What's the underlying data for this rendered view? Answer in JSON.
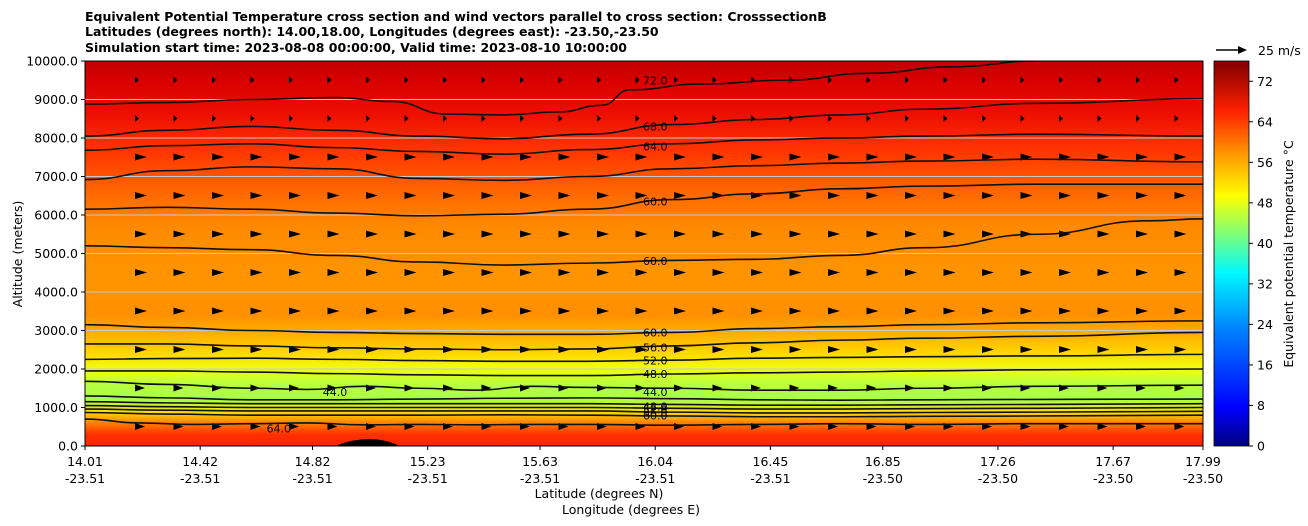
{
  "chart_data": {
    "type": "contour-cross-section",
    "title_lines": [
      "Equivalent Potential Temperature cross section and wind vectors parallel to cross section: CrosssectionB",
      "Latitudes (degrees north): 14.00,18.00, Longitudes (degrees east): -23.50,-23.50",
      "Simulation start time: 2023-08-08 00:00:00, Valid time: 2023-08-10 10:00:00"
    ],
    "ylabel": "Altitude (meters)",
    "xlabel_lat": "Latitude (degrees N)",
    "xlabel_lon": "Longitude (degrees E)",
    "ylim": [
      0,
      10000
    ],
    "yticks": [
      "0.0",
      "1000.0",
      "2000.0",
      "3000.0",
      "4000.0",
      "5000.0",
      "6000.0",
      "7000.0",
      "8000.0",
      "9000.0",
      "10000.0"
    ],
    "xlim": [
      14.01,
      17.99
    ],
    "xticks": [
      {
        "lat": "14.01",
        "lon": "-23.51",
        "pos": 14.01
      },
      {
        "lat": "14.42",
        "lon": "-23.51",
        "pos": 14.42
      },
      {
        "lat": "14.82",
        "lon": "-23.51",
        "pos": 14.82
      },
      {
        "lat": "15.23",
        "lon": "-23.51",
        "pos": 15.23
      },
      {
        "lat": "15.63",
        "lon": "-23.51",
        "pos": 15.63
      },
      {
        "lat": "16.04",
        "lon": "-23.51",
        "pos": 16.04
      },
      {
        "lat": "16.45",
        "lon": "-23.51",
        "pos": 16.45
      },
      {
        "lat": "16.85",
        "lon": "-23.50",
        "pos": 16.85
      },
      {
        "lat": "17.26",
        "lon": "-23.50",
        "pos": 17.26
      },
      {
        "lat": "17.67",
        "lon": "-23.50",
        "pos": 17.67
      },
      {
        "lat": "17.99",
        "lon": "-23.50",
        "pos": 17.99
      }
    ],
    "grid": true,
    "colorbar": {
      "label": "Equivalent potential temperature °C",
      "range": [
        0,
        76
      ],
      "ticks": [
        "0",
        "8",
        "16",
        "24",
        "32",
        "40",
        "48",
        "56",
        "64",
        "72"
      ],
      "tick_values": [
        0,
        8,
        16,
        24,
        32,
        40,
        48,
        56,
        64,
        72
      ]
    },
    "quiver_key": {
      "label": "25 m/s"
    },
    "contour_levels": [
      {
        "value": 72,
        "label": "72.0",
        "points": [
          [
            14.01,
            8880
          ],
          [
            14.3,
            8920
          ],
          [
            14.6,
            9000
          ],
          [
            14.9,
            9050
          ],
          [
            15.1,
            8950
          ],
          [
            15.3,
            8620
          ],
          [
            15.5,
            8600
          ],
          [
            15.7,
            8680
          ],
          [
            15.85,
            8850
          ],
          [
            15.95,
            9250
          ],
          [
            16.2,
            9400
          ],
          [
            16.5,
            9500
          ],
          [
            16.8,
            9680
          ],
          [
            17.1,
            9850
          ],
          [
            17.4,
            10000
          ]
        ],
        "label_at": [
          16.04,
          9500
        ]
      },
      {
        "value": 68,
        "label": "68.0",
        "points": [
          [
            14.01,
            8050
          ],
          [
            14.3,
            8200
          ],
          [
            14.6,
            8300
          ],
          [
            14.9,
            8200
          ],
          [
            15.2,
            8050
          ],
          [
            15.5,
            7980
          ],
          [
            15.8,
            8100
          ],
          [
            16.1,
            8350
          ],
          [
            16.4,
            8480
          ],
          [
            16.7,
            8600
          ],
          [
            17.0,
            8750
          ],
          [
            17.4,
            8900
          ],
          [
            17.99,
            9020
          ]
        ],
        "label_at": [
          16.04,
          8300
        ]
      },
      {
        "value": 64,
        "label": "64.0",
        "points": [
          [
            14.01,
            7680
          ],
          [
            14.3,
            7800
          ],
          [
            14.6,
            7850
          ],
          [
            14.9,
            7750
          ],
          [
            15.2,
            7650
          ],
          [
            15.5,
            7580
          ],
          [
            15.8,
            7700
          ],
          [
            16.1,
            7850
          ],
          [
            16.4,
            7950
          ],
          [
            16.7,
            8000
          ],
          [
            17.0,
            8050
          ],
          [
            17.4,
            8100
          ],
          [
            17.99,
            8050
          ]
        ],
        "label_at": [
          16.04,
          7780
        ]
      },
      {
        "value": 62,
        "label": "",
        "points": [
          [
            14.01,
            6920
          ],
          [
            14.3,
            7150
          ],
          [
            14.6,
            7250
          ],
          [
            14.9,
            7200
          ],
          [
            15.2,
            6950
          ],
          [
            15.5,
            6900
          ],
          [
            15.8,
            7000
          ],
          [
            16.1,
            7200
          ],
          [
            16.4,
            7280
          ],
          [
            16.7,
            7350
          ],
          [
            17.0,
            7400
          ],
          [
            17.4,
            7450
          ],
          [
            17.99,
            7380
          ]
        ],
        "label_at": null
      },
      {
        "value": 60,
        "label": "60.0",
        "points": [
          [
            14.01,
            6150
          ],
          [
            14.3,
            6200
          ],
          [
            14.6,
            6150
          ],
          [
            14.9,
            6050
          ],
          [
            15.2,
            5980
          ],
          [
            15.5,
            6020
          ],
          [
            15.8,
            6150
          ],
          [
            16.1,
            6400
          ],
          [
            16.4,
            6550
          ],
          [
            16.7,
            6680
          ],
          [
            17.0,
            6750
          ],
          [
            17.4,
            6800
          ],
          [
            17.99,
            6800
          ]
        ],
        "label_at": [
          16.04,
          6350
        ]
      },
      {
        "value": 60,
        "label": "60.0",
        "points": [
          [
            14.01,
            5200
          ],
          [
            14.3,
            5150
          ],
          [
            14.6,
            5100
          ],
          [
            14.9,
            4950
          ],
          [
            15.2,
            4780
          ],
          [
            15.5,
            4700
          ],
          [
            15.8,
            4750
          ],
          [
            16.1,
            4820
          ],
          [
            16.4,
            4850
          ],
          [
            16.7,
            4950
          ],
          [
            17.0,
            5150
          ],
          [
            17.4,
            5500
          ],
          [
            17.8,
            5850
          ],
          [
            17.99,
            5900
          ]
        ],
        "label_at": [
          16.04,
          4800
        ]
      },
      {
        "value": 60,
        "label": "60.0",
        "points": [
          [
            14.01,
            3150
          ],
          [
            14.3,
            3080
          ],
          [
            14.6,
            3000
          ],
          [
            14.9,
            2950
          ],
          [
            15.2,
            2920
          ],
          [
            15.5,
            2900
          ],
          [
            15.8,
            2900
          ],
          [
            16.1,
            2950
          ],
          [
            16.4,
            3050
          ],
          [
            16.7,
            3100
          ],
          [
            17.0,
            3150
          ],
          [
            17.4,
            3200
          ],
          [
            17.99,
            3250
          ]
        ],
        "label_at": [
          16.04,
          2950
        ]
      },
      {
        "value": 56,
        "label": "56.0",
        "points": [
          [
            14.01,
            2650
          ],
          [
            14.3,
            2650
          ],
          [
            14.6,
            2600
          ],
          [
            14.9,
            2550
          ],
          [
            15.2,
            2520
          ],
          [
            15.5,
            2500
          ],
          [
            15.8,
            2520
          ],
          [
            16.1,
            2600
          ],
          [
            16.4,
            2680
          ],
          [
            16.7,
            2750
          ],
          [
            17.0,
            2800
          ],
          [
            17.4,
            2850
          ],
          [
            17.99,
            2950
          ]
        ],
        "label_at": [
          16.04,
          2560
        ]
      },
      {
        "value": 52,
        "label": "52.0",
        "points": [
          [
            14.01,
            2250
          ],
          [
            14.3,
            2270
          ],
          [
            14.6,
            2280
          ],
          [
            14.9,
            2250
          ],
          [
            15.2,
            2220
          ],
          [
            15.5,
            2200
          ],
          [
            15.8,
            2200
          ],
          [
            16.1,
            2230
          ],
          [
            16.4,
            2280
          ],
          [
            16.7,
            2300
          ],
          [
            17.0,
            2320
          ],
          [
            17.4,
            2340
          ],
          [
            17.99,
            2380
          ]
        ],
        "label_at": [
          16.04,
          2220
        ]
      },
      {
        "value": 48,
        "label": "48.0",
        "points": [
          [
            14.01,
            1950
          ],
          [
            14.3,
            1950
          ],
          [
            14.6,
            1920
          ],
          [
            14.9,
            1880
          ],
          [
            15.2,
            1850
          ],
          [
            15.5,
            1830
          ],
          [
            15.8,
            1830
          ],
          [
            16.1,
            1870
          ],
          [
            16.4,
            1900
          ],
          [
            16.7,
            1920
          ],
          [
            17.0,
            1950
          ],
          [
            17.4,
            1980
          ],
          [
            17.99,
            2000
          ]
        ],
        "label_at": [
          16.04,
          1870
        ]
      },
      {
        "value": 44,
        "label": "44.0",
        "points": [
          [
            14.01,
            1680
          ],
          [
            14.3,
            1600
          ],
          [
            14.6,
            1500
          ],
          [
            14.8,
            1470
          ],
          [
            15.0,
            1550
          ],
          [
            15.2,
            1500
          ],
          [
            15.4,
            1450
          ],
          [
            15.6,
            1550
          ],
          [
            15.8,
            1520
          ],
          [
            16.1,
            1500
          ],
          [
            16.4,
            1450
          ],
          [
            16.7,
            1450
          ],
          [
            17.0,
            1500
          ],
          [
            17.4,
            1550
          ],
          [
            17.99,
            1580
          ]
        ],
        "label_at": [
          16.04,
          1400
        ]
      },
      {
        "value": 44,
        "label": "44.0",
        "points": [
          [
            14.01,
            1300
          ],
          [
            14.3,
            1250
          ],
          [
            14.6,
            1200
          ],
          [
            14.9,
            1200
          ],
          [
            15.2,
            1220
          ],
          [
            15.5,
            1240
          ],
          [
            15.8,
            1250
          ],
          [
            16.1,
            1230
          ],
          [
            16.4,
            1200
          ],
          [
            16.7,
            1190
          ],
          [
            17.0,
            1200
          ],
          [
            17.4,
            1210
          ],
          [
            17.99,
            1220
          ]
        ],
        "label_at": [
          14.9,
          1400
        ]
      },
      {
        "value": 48,
        "label": "48.0",
        "points": [
          [
            14.01,
            1150
          ],
          [
            14.3,
            1120
          ],
          [
            14.6,
            1100
          ],
          [
            14.9,
            1100
          ],
          [
            15.2,
            1100
          ],
          [
            15.5,
            1100
          ],
          [
            15.8,
            1100
          ],
          [
            16.1,
            1080
          ],
          [
            16.4,
            1060
          ],
          [
            16.7,
            1060
          ],
          [
            17.0,
            1070
          ],
          [
            17.4,
            1080
          ],
          [
            17.99,
            1100
          ]
        ],
        "label_at": [
          16.04,
          1020
        ]
      },
      {
        "value": 52,
        "label": "52.0",
        "points": [
          [
            14.01,
            1050
          ],
          [
            14.3,
            1020
          ],
          [
            14.6,
            1000
          ],
          [
            14.9,
            1000
          ],
          [
            15.2,
            1000
          ],
          [
            15.5,
            1000
          ],
          [
            15.8,
            1000
          ],
          [
            16.1,
            980
          ],
          [
            16.4,
            960
          ],
          [
            16.7,
            960
          ],
          [
            17.0,
            970
          ],
          [
            17.4,
            980
          ],
          [
            17.99,
            1000
          ]
        ],
        "label_at": [
          16.04,
          950
        ]
      },
      {
        "value": 56,
        "label": "56.0",
        "points": [
          [
            14.01,
            960
          ],
          [
            14.3,
            930
          ],
          [
            14.6,
            910
          ],
          [
            14.9,
            910
          ],
          [
            15.2,
            910
          ],
          [
            15.5,
            910
          ],
          [
            15.8,
            910
          ],
          [
            16.1,
            880
          ],
          [
            16.4,
            860
          ],
          [
            16.7,
            860
          ],
          [
            17.0,
            870
          ],
          [
            17.4,
            880
          ],
          [
            17.99,
            900
          ]
        ],
        "label_at": [
          16.04,
          870
        ]
      },
      {
        "value": 60,
        "label": "60.0",
        "points": [
          [
            14.01,
            870
          ],
          [
            14.3,
            830
          ],
          [
            14.6,
            800
          ],
          [
            14.9,
            800
          ],
          [
            15.2,
            800
          ],
          [
            15.5,
            810
          ],
          [
            15.8,
            800
          ],
          [
            16.1,
            780
          ],
          [
            16.4,
            760
          ],
          [
            16.7,
            760
          ],
          [
            17.0,
            770
          ],
          [
            17.4,
            780
          ],
          [
            17.99,
            800
          ]
        ],
        "label_at": [
          16.04,
          790
        ]
      },
      {
        "value": 64,
        "label": "64.0",
        "points": [
          [
            14.01,
            700
          ],
          [
            14.2,
            600
          ],
          [
            14.4,
            560
          ],
          [
            14.6,
            580
          ],
          [
            14.8,
            600
          ],
          [
            15.0,
            550
          ],
          [
            15.2,
            560
          ],
          [
            15.4,
            550
          ],
          [
            15.6,
            560
          ],
          [
            15.8,
            560
          ],
          [
            16.1,
            540
          ],
          [
            16.4,
            560
          ],
          [
            16.7,
            580
          ],
          [
            17.0,
            560
          ],
          [
            17.4,
            580
          ],
          [
            17.99,
            580
          ]
        ],
        "label_at": [
          14.7,
          450
        ]
      }
    ]
  }
}
